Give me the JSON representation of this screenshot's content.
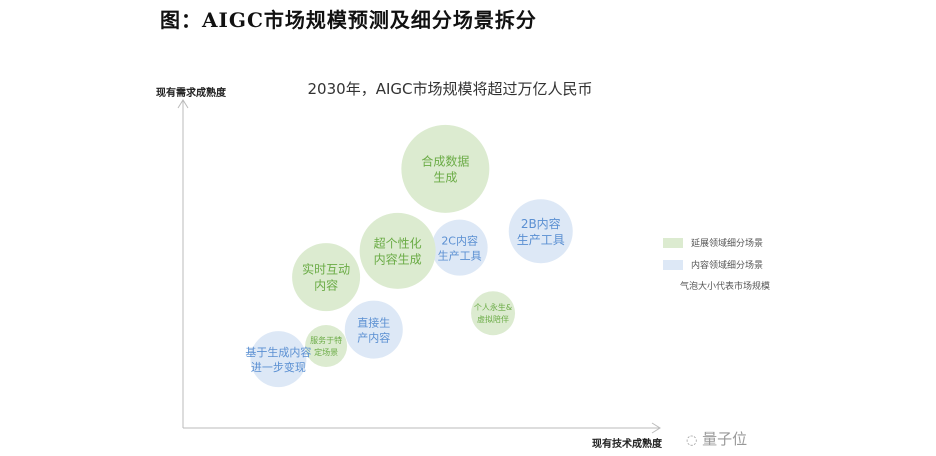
{
  "figure_title": "图：AIGC市场规模预测及细分场景拆分",
  "watermark": "量子位",
  "colors": {
    "extended": "#dcebd0",
    "extended_text": "#6aab45",
    "content": "#dde8f6",
    "content_text": "#5a8fd2",
    "axis": "#bbbbbb"
  },
  "chart_data": {
    "type": "bubble",
    "title": "2030年，AIGC市场规模将超过万亿人民币",
    "xlabel": "现有技术成熟度",
    "ylabel": "现有需求成熟度",
    "xlim": [
      0,
      100
    ],
    "ylim": [
      0,
      100
    ],
    "grid": false,
    "legend_position": "right",
    "legend": [
      {
        "category": "extended",
        "label": "延展领域细分场景"
      },
      {
        "category": "content",
        "label": "内容领域细分场景"
      }
    ],
    "size_note": "气泡大小代表市场规模",
    "points": [
      {
        "label": [
          "合成数据",
          "生成"
        ],
        "category": "extended",
        "x": 55,
        "y": 79,
        "size": 44
      },
      {
        "label": [
          "2B内容",
          "生产工具"
        ],
        "category": "content",
        "x": 75,
        "y": 60,
        "size": 32
      },
      {
        "label": [
          "2C内容",
          "生产工具"
        ],
        "category": "content",
        "x": 58,
        "y": 55,
        "size": 28
      },
      {
        "label": [
          "超个性化",
          "内容生成"
        ],
        "category": "extended",
        "x": 45,
        "y": 54,
        "size": 38
      },
      {
        "label": [
          "实时互动",
          "内容"
        ],
        "category": "extended",
        "x": 30,
        "y": 46,
        "size": 34
      },
      {
        "label": [
          "个人永生&",
          "虚拟陪伴"
        ],
        "category": "extended",
        "x": 65,
        "y": 35,
        "size": 22
      },
      {
        "label": [
          "直接生",
          "产内容"
        ],
        "category": "content",
        "x": 40,
        "y": 30,
        "size": 29
      },
      {
        "label": [
          "服务于特",
          "定场景"
        ],
        "category": "extended",
        "x": 30,
        "y": 25,
        "size": 21
      },
      {
        "label": [
          "基于生成内容",
          "进一步变现"
        ],
        "category": "content",
        "x": 20,
        "y": 21,
        "size": 28
      }
    ]
  }
}
